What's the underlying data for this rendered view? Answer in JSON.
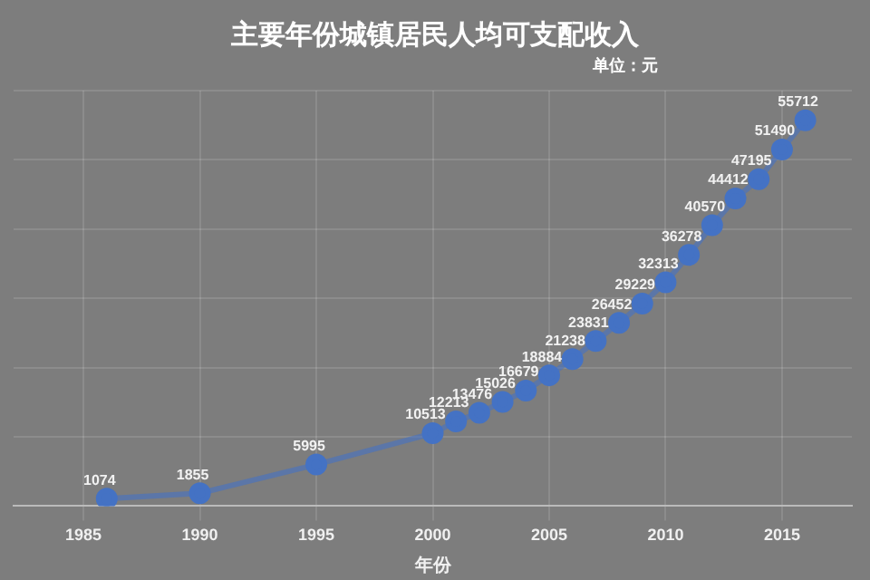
{
  "chart_data": {
    "type": "line",
    "title": "主要年份城镇居民人均可支配收入",
    "subtitle": "单位：元",
    "xlabel": "年份",
    "x": [
      1986,
      1990,
      1995,
      2000,
      2001,
      2002,
      2003,
      2004,
      2005,
      2006,
      2007,
      2008,
      2009,
      2010,
      2011,
      2012,
      2013,
      2014,
      2015,
      2016
    ],
    "series": [
      {
        "color": "#4472c4",
        "values": [
          1074,
          1855,
          5995,
          10513,
          12213,
          13476,
          15026,
          16679,
          18884,
          21238,
          23831,
          26452,
          29229,
          32313,
          36278,
          40570,
          44412,
          47195,
          51490,
          55712
        ]
      }
    ],
    "xlim": [
      1982,
      2018
    ],
    "xticks": [
      1985,
      1990,
      1995,
      2000,
      2005,
      2010,
      2015
    ],
    "ylim": [
      0,
      60000
    ],
    "yticks": [
      {
        "value": 0,
        "label": null
      },
      {
        "value": 10000,
        "label": null
      },
      {
        "value": 20000,
        "label": null
      },
      {
        "value": 30000,
        "label": null
      },
      {
        "value": 40000,
        "label": null
      },
      {
        "value": 50000,
        "label": null
      },
      {
        "value": 60000,
        "label": null
      }
    ],
    "tick_labels": "x",
    "grid": true,
    "legend": false,
    "marker": "circle",
    "line_style": "solid",
    "data_labels": true
  }
}
